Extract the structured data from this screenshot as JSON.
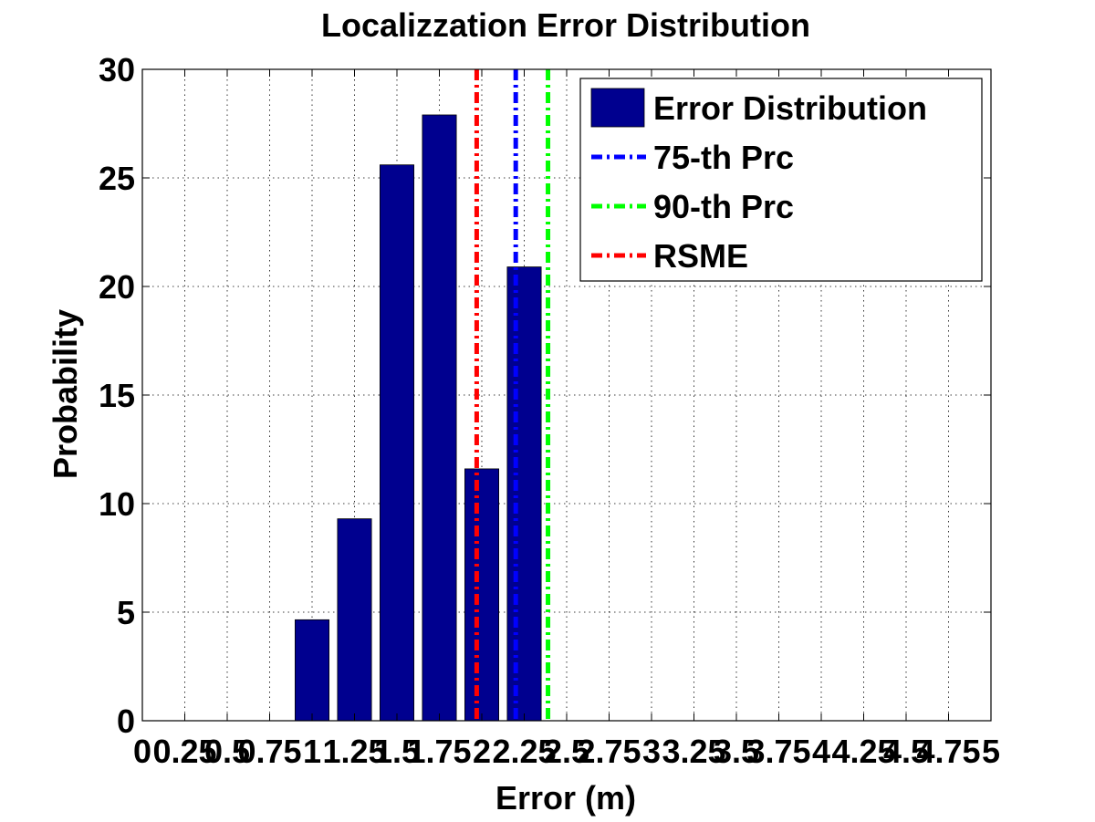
{
  "chart_data": {
    "type": "bar",
    "title": "Localizzation Error Distribution",
    "xlabel": "Error (m)",
    "ylabel": "Probability",
    "xlim": [
      0,
      5
    ],
    "ylim": [
      0,
      30
    ],
    "grid": true,
    "legend_position": "top-right",
    "x_ticks": [
      0,
      0.25,
      0.5,
      0.75,
      1,
      1.25,
      1.5,
      1.75,
      2,
      2.25,
      2.5,
      2.75,
      3,
      3.25,
      3.5,
      3.75,
      4,
      4.25,
      4.5,
      4.75,
      5
    ],
    "x_tick_labels": [
      "0",
      "0.25",
      "0.5",
      "0.75",
      "1",
      "1.25",
      "1.5",
      "1.75",
      "2",
      "2.25",
      "2.5",
      "2.75",
      "3",
      "3.25",
      "3.5",
      "3.75",
      "4",
      "4.25",
      "4.5",
      "4.75",
      "5"
    ],
    "y_ticks": [
      0,
      5,
      10,
      15,
      20,
      25,
      30
    ],
    "y_tick_labels": [
      "0",
      "5",
      "10",
      "15",
      "20",
      "25",
      "30"
    ],
    "series": [
      {
        "name": "Error Distribution",
        "color": "#00008f",
        "x": [
          1.0,
          1.25,
          1.5,
          1.75,
          2.0,
          2.25
        ],
        "values": [
          4.65,
          9.3,
          25.6,
          27.9,
          11.6,
          20.9
        ]
      }
    ],
    "reference_lines": [
      {
        "name": "75-th Prc",
        "x": 2.2,
        "color": "#0000ff",
        "style": "dash-dot"
      },
      {
        "name": "90-th Prc",
        "x": 2.39,
        "color": "#00ff00",
        "style": "dash-dot"
      },
      {
        "name": "RSME",
        "x": 1.97,
        "color": "#ff0000",
        "style": "dash-dot"
      }
    ],
    "legend": [
      "Error Distribution",
      "75-th Prc",
      "90-th Prc",
      "RSME"
    ]
  }
}
